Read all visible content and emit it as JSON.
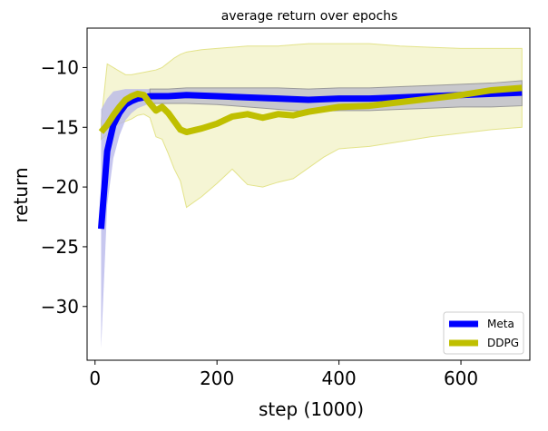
{
  "chart_data": {
    "type": "line",
    "title": "average return over epochs",
    "xlabel": "step (1000)",
    "ylabel": "return",
    "xlim": [
      -13,
      713
    ],
    "ylim": [
      -34.5,
      -6.7
    ],
    "xticks": [
      0,
      200,
      400,
      600
    ],
    "yticks": [
      -30,
      -25,
      -20,
      -15,
      -10
    ],
    "xtick_labels": [
      "0",
      "200",
      "400",
      "600"
    ],
    "ytick_labels": [
      "−30",
      "−25",
      "−20",
      "−15",
      "−10"
    ],
    "grid": false,
    "legend_position": "lower right",
    "series": [
      {
        "name": "Meta",
        "color": "#0000ff",
        "band_color": "#b4b4ea",
        "band_dark_color": "#c8c8c8",
        "x": [
          10,
          20,
          30,
          40,
          50,
          60,
          70,
          80,
          90,
          100,
          120,
          150,
          200,
          250,
          300,
          350,
          400,
          450,
          500,
          550,
          600,
          650,
          700
        ],
        "y": [
          -23.5,
          -17.0,
          -14.8,
          -13.8,
          -13.1,
          -12.8,
          -12.6,
          -12.5,
          -12.4,
          -12.4,
          -12.4,
          -12.3,
          -12.4,
          -12.5,
          -12.6,
          -12.7,
          -12.6,
          -12.6,
          -12.5,
          -12.4,
          -12.3,
          -12.2,
          -12.1
        ],
        "upper": [
          -13.5,
          -12.6,
          -12.0,
          -11.9,
          -11.8,
          -11.8,
          -11.8,
          -11.8,
          -11.8,
          -11.8,
          -11.8,
          -11.7,
          -11.7,
          -11.7,
          -11.7,
          -11.8,
          -11.7,
          -11.7,
          -11.6,
          -11.5,
          -11.4,
          -11.3,
          -11.1
        ],
        "lower": [
          -33.5,
          -21.5,
          -17.6,
          -15.7,
          -14.4,
          -13.8,
          -13.4,
          -13.2,
          -13.0,
          -13.0,
          -13.0,
          -13.0,
          -13.1,
          -13.3,
          -13.5,
          -13.7,
          -13.6,
          -13.6,
          -13.5,
          -13.4,
          -13.3,
          -13.3,
          -13.2
        ]
      },
      {
        "name": "DDPG",
        "color": "#bfbf00",
        "band_color": "#f2f2c6",
        "band_edge_color": "#e3e38a",
        "x": [
          10,
          20,
          30,
          40,
          50,
          60,
          70,
          80,
          90,
          100,
          110,
          120,
          130,
          140,
          150,
          175,
          200,
          225,
          250,
          275,
          300,
          325,
          350,
          375,
          400,
          450,
          500,
          550,
          600,
          650,
          700
        ],
        "y": [
          -15.4,
          -14.8,
          -14.0,
          -13.3,
          -12.7,
          -12.4,
          -12.2,
          -12.3,
          -13.0,
          -13.6,
          -13.3,
          -13.8,
          -14.5,
          -15.2,
          -15.4,
          -15.1,
          -14.7,
          -14.1,
          -13.9,
          -14.2,
          -13.9,
          -14.0,
          -13.7,
          -13.5,
          -13.3,
          -13.2,
          -12.9,
          -12.6,
          -12.3,
          -11.9,
          -11.7
        ],
        "upper": [
          -14.5,
          -9.7,
          -10.0,
          -10.3,
          -10.6,
          -10.6,
          -10.5,
          -10.4,
          -10.3,
          -10.2,
          -10.0,
          -9.6,
          -9.2,
          -8.9,
          -8.7,
          -8.5,
          -8.4,
          -8.3,
          -8.2,
          -8.2,
          -8.2,
          -8.1,
          -8.0,
          -8.0,
          -8.0,
          -8.0,
          -8.2,
          -8.3,
          -8.4,
          -8.4,
          -8.4
        ],
        "lower": [
          -16.0,
          -15.6,
          -15.0,
          -14.7,
          -14.5,
          -14.3,
          -14.0,
          -13.9,
          -14.2,
          -15.8,
          -16.0,
          -17.2,
          -18.5,
          -19.5,
          -21.7,
          -20.8,
          -19.7,
          -18.5,
          -19.8,
          -20.0,
          -19.6,
          -19.3,
          -18.4,
          -17.5,
          -16.8,
          -16.6,
          -16.2,
          -15.8,
          -15.5,
          -15.2,
          -15.0
        ]
      }
    ]
  }
}
